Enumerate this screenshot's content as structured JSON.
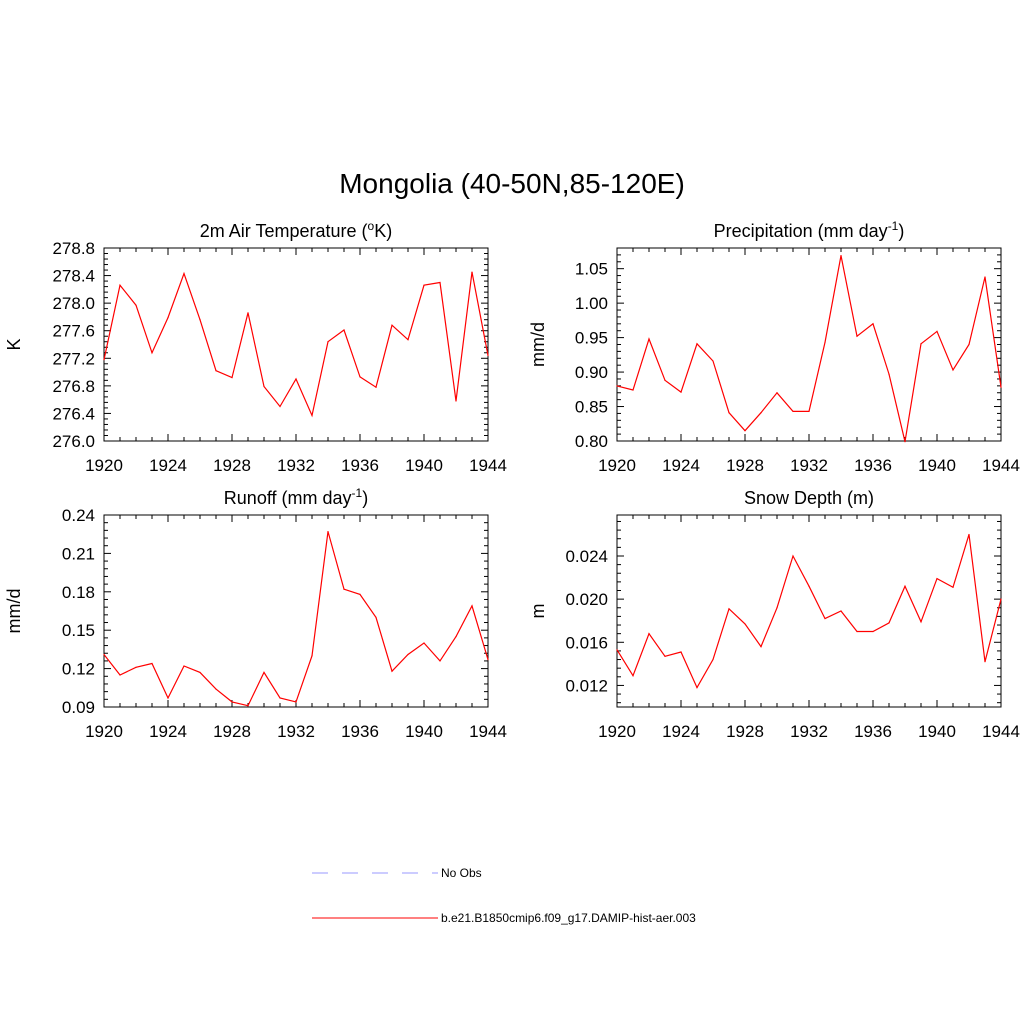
{
  "title": "Mongolia (40-50N,85-120E)",
  "legend": [
    {
      "label": "No Obs",
      "color": "#9999ff",
      "dash": "dashed"
    },
    {
      "label": "b.e21.B1850cmip6.f09_g17.DAMIP-hist-aer.003",
      "color": "#ff0000",
      "dash": "solid"
    }
  ],
  "chart_data": [
    {
      "type": "line",
      "title": "2m Air Temperature (",
      "title_sup": "o",
      "title_suffix": "K)",
      "ylabel": "K",
      "xlim": [
        1920,
        1944
      ],
      "ylim": [
        276.0,
        278.8
      ],
      "xticks": [
        "1920",
        "1924",
        "1928",
        "1932",
        "1936",
        "1940",
        "1944"
      ],
      "yticks": [
        "276.0",
        "276.4",
        "276.8",
        "277.2",
        "277.6",
        "278.0",
        "278.4",
        "278.8"
      ],
      "color": "#ff0000",
      "x": [
        1920,
        1921,
        1922,
        1923,
        1924,
        1925,
        1926,
        1927,
        1928,
        1929,
        1930,
        1931,
        1932,
        1933,
        1934,
        1935,
        1936,
        1937,
        1938,
        1939,
        1940,
        1941,
        1942,
        1943,
        1944
      ],
      "values": [
        277.18,
        278.26,
        277.97,
        277.28,
        277.79,
        278.43,
        277.76,
        277.02,
        276.92,
        277.86,
        276.79,
        276.5,
        276.9,
        276.37,
        277.44,
        277.61,
        276.93,
        276.78,
        277.68,
        277.47,
        278.26,
        278.3,
        276.58,
        278.45,
        277.24
      ]
    },
    {
      "type": "line",
      "title": "Precipitation (mm day",
      "title_sup": "-1",
      "title_suffix": ")",
      "ylabel": "mm/d",
      "xlim": [
        1920,
        1944
      ],
      "ylim": [
        0.8,
        1.08
      ],
      "xticks": [
        "1920",
        "1924",
        "1928",
        "1932",
        "1936",
        "1940",
        "1944"
      ],
      "yticks": [
        "0.80",
        "0.85",
        "0.90",
        "0.95",
        "1.00",
        "1.05"
      ],
      "ytick_values": [
        0.8,
        0.85,
        0.9,
        0.95,
        1.0,
        1.05
      ],
      "color": "#ff0000",
      "x": [
        1920,
        1921,
        1922,
        1923,
        1924,
        1925,
        1926,
        1927,
        1928,
        1929,
        1930,
        1931,
        1932,
        1933,
        1934,
        1935,
        1936,
        1937,
        1938,
        1939,
        1940,
        1941,
        1942,
        1943,
        1944
      ],
      "values": [
        0.88,
        0.874,
        0.948,
        0.888,
        0.871,
        0.941,
        0.916,
        0.841,
        0.815,
        0.841,
        0.87,
        0.843,
        0.843,
        0.943,
        1.069,
        0.952,
        0.97,
        0.897,
        0.799,
        0.941,
        0.959,
        0.903,
        0.94,
        1.038,
        0.878
      ]
    },
    {
      "type": "line",
      "title": "Runoff (mm day",
      "title_sup": "-1",
      "title_suffix": ")",
      "ylabel": "mm/d",
      "xlim": [
        1920,
        1944
      ],
      "ylim": [
        0.09,
        0.24
      ],
      "xticks": [
        "1920",
        "1924",
        "1928",
        "1932",
        "1936",
        "1940",
        "1944"
      ],
      "yticks": [
        "0.09",
        "0.12",
        "0.15",
        "0.18",
        "0.21",
        "0.24"
      ],
      "ytick_values": [
        0.09,
        0.12,
        0.15,
        0.18,
        0.21,
        0.24
      ],
      "color": "#ff0000",
      "x": [
        1920,
        1921,
        1922,
        1923,
        1924,
        1925,
        1926,
        1927,
        1928,
        1929,
        1930,
        1931,
        1932,
        1933,
        1934,
        1935,
        1936,
        1937,
        1938,
        1939,
        1940,
        1941,
        1942,
        1943,
        1944
      ],
      "values": [
        0.131,
        0.115,
        0.121,
        0.124,
        0.097,
        0.122,
        0.117,
        0.104,
        0.094,
        0.091,
        0.117,
        0.097,
        0.094,
        0.13,
        0.227,
        0.182,
        0.178,
        0.16,
        0.118,
        0.131,
        0.14,
        0.126,
        0.145,
        0.169,
        0.127
      ]
    },
    {
      "type": "line",
      "title": "Snow Depth (m)",
      "title_sup": "",
      "title_suffix": "",
      "ylabel": "m",
      "xlim": [
        1920,
        1944
      ],
      "ylim": [
        0.01,
        0.0278
      ],
      "xticks": [
        "1920",
        "1924",
        "1928",
        "1932",
        "1936",
        "1940",
        "1944"
      ],
      "yticks": [
        "0.012",
        "0.016",
        "0.020",
        "0.024"
      ],
      "ytick_values": [
        0.012,
        0.016,
        0.02,
        0.024
      ],
      "color": "#ff0000",
      "x": [
        1920,
        1921,
        1922,
        1923,
        1924,
        1925,
        1926,
        1927,
        1928,
        1929,
        1930,
        1931,
        1932,
        1933,
        1934,
        1935,
        1936,
        1937,
        1938,
        1939,
        1940,
        1941,
        1942,
        1943,
        1944
      ],
      "values": [
        0.0153,
        0.0129,
        0.0168,
        0.0147,
        0.0151,
        0.0118,
        0.0144,
        0.0191,
        0.0177,
        0.0156,
        0.0192,
        0.024,
        0.0212,
        0.0182,
        0.0189,
        0.017,
        0.017,
        0.0178,
        0.0212,
        0.0179,
        0.0219,
        0.0211,
        0.026,
        0.0142,
        0.02
      ]
    }
  ]
}
